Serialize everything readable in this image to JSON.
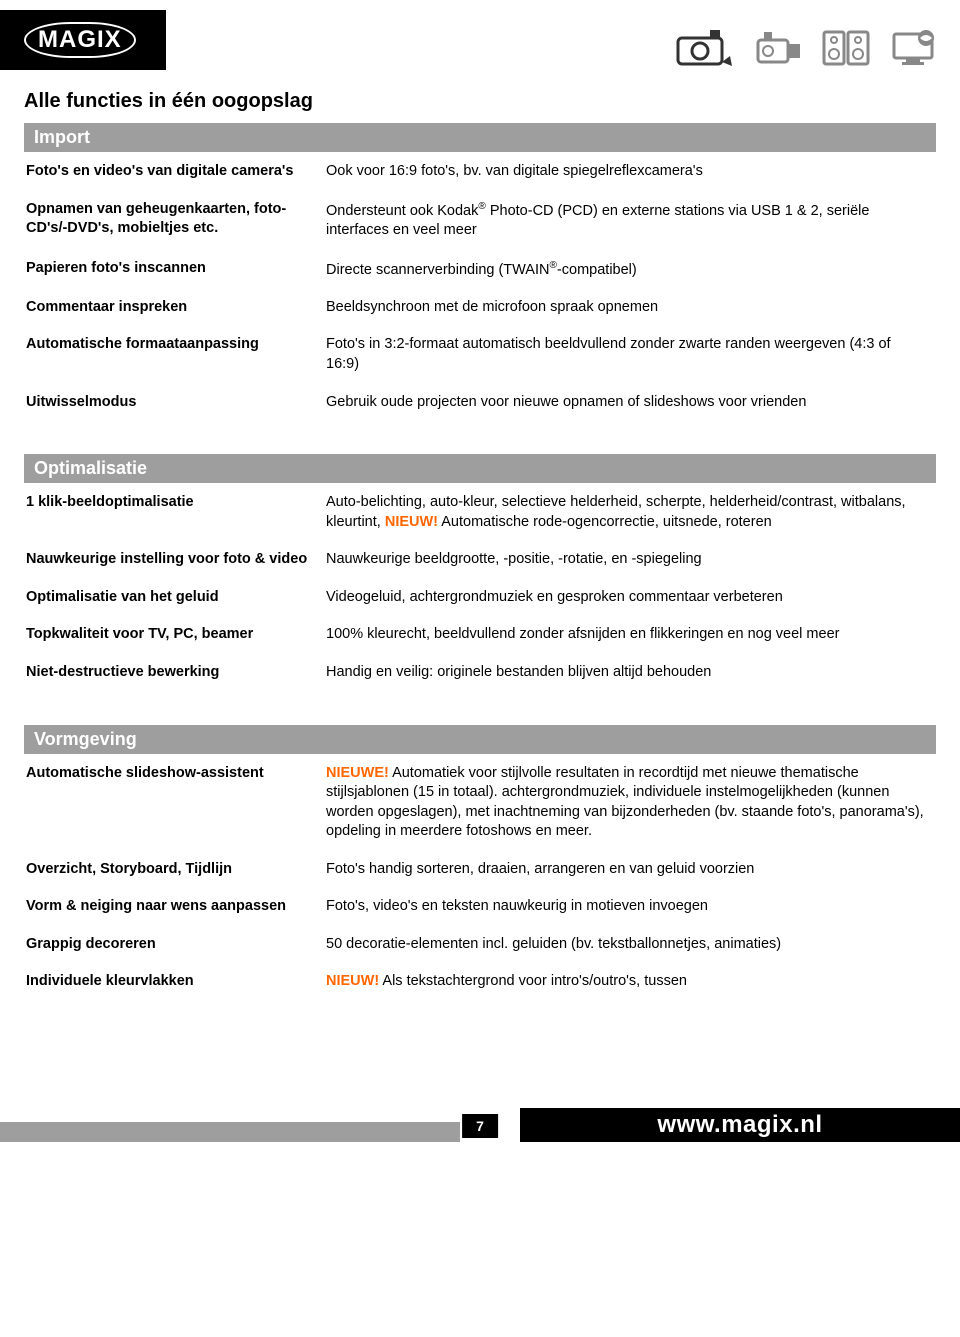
{
  "brand": {
    "logo": "MAGIX"
  },
  "page_title": "Alle functies in één oogopslag",
  "highlight_color": "#ff6600",
  "section_header_bg": "#9e9e9e",
  "section_header_fg": "#ffffff",
  "sections": {
    "import": {
      "title": "Import",
      "rows": [
        {
          "left": "Foto's en video's van digitale camera's",
          "right": "Ook voor 16:9 foto's, bv. van digitale spiegelreflexcamera's"
        },
        {
          "left": "Opnamen van geheugenkaarten, foto-CD's/-DVD's, mobieltjes etc.",
          "right_html": "Ondersteunt ook Kodak<sup>®</sup> Photo-CD (PCD) en externe stations via USB 1 & 2, seriële interfaces en veel meer"
        },
        {
          "left": "Papieren foto's inscannen",
          "right_html": "Directe scannerverbinding (TWAIN<sup>®</sup>-compatibel)"
        },
        {
          "left": "Commentaar inspreken",
          "right": "Beeldsynchroon met de microfoon spraak opnemen"
        },
        {
          "left": "Automatische formaataanpassing",
          "right": "Foto's in 3:2-formaat automatisch beeldvullend zonder zwarte randen weergeven (4:3 of 16:9)"
        },
        {
          "left": "Uitwisselmodus",
          "right": "Gebruik oude projecten voor nieuwe opnamen of slideshows voor vrienden"
        }
      ]
    },
    "optimalisatie": {
      "title": "Optimalisatie",
      "rows": [
        {
          "left": "1 klik-beeldoptimalisatie",
          "right_pre": "Auto-belichting, auto-kleur, selectieve helderheid, scherpte, helderheid/contrast, witbalans, kleurtint, ",
          "highlight": "NIEUW!",
          "right_post": " Automatische rode-ogencorrectie, uitsnede, roteren"
        },
        {
          "left": "Nauwkeurige instelling voor foto & video",
          "right": "Nauwkeurige beeldgrootte, -positie, -rotatie, en -spiegeling"
        },
        {
          "left": "Optimalisatie van het geluid",
          "right": "Videogeluid, achtergrondmuziek en gesproken commentaar verbeteren"
        },
        {
          "left": "Topkwaliteit voor TV, PC, beamer",
          "right": "100% kleurecht, beeldvullend zonder afsnijden en flikkeringen en nog veel meer"
        },
        {
          "left": "Niet-destructieve bewerking",
          "right": "Handig en veilig: originele bestanden blijven altijd behouden"
        }
      ]
    },
    "vormgeving": {
      "title": "Vormgeving",
      "rows": [
        {
          "left": "Automatische slideshow-assistent",
          "highlight": "NIEUWE!",
          "right_post": " Automatiek voor stijlvolle resultaten in recordtijd met nieuwe thematische stijlsjablonen (15 in totaal). achtergrondmuziek, individuele instelmogelijkheden (kunnen worden opgeslagen), met inachtneming van bijzonderheden (bv. staande foto's, panorama's), opdeling in meerdere fotoshows en meer."
        },
        {
          "left": "Overzicht, Storyboard, Tijdlijn",
          "right": "Foto's handig sorteren, draaien, arrangeren en van geluid voorzien"
        },
        {
          "left": "Vorm & neiging naar wens aanpassen",
          "right": "Foto's, video's en teksten nauwkeurig in motieven invoegen"
        },
        {
          "left": "Grappig decoreren",
          "right": "50 decoratie-elementen incl. geluiden (bv. tekstballonnetjes, animaties)"
        },
        {
          "left": "Individuele kleurvlakken",
          "highlight": "NIEUW!",
          "right_post": " Als tekstachtergrond voor intro's/outro's, tussen"
        }
      ]
    }
  },
  "footer": {
    "page_number": "7",
    "url": "www.magix.nl"
  }
}
